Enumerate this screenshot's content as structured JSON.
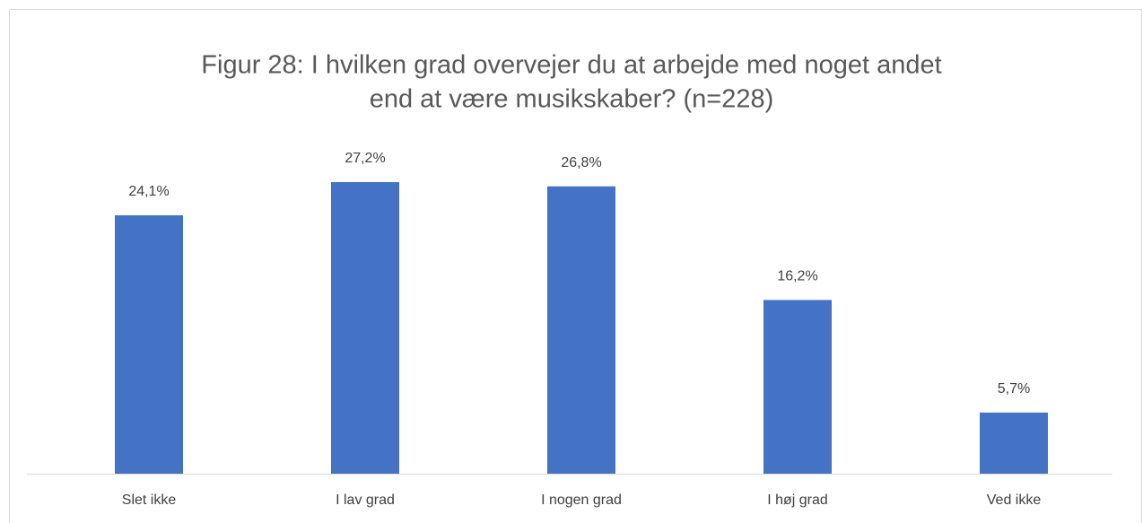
{
  "chart_data": {
    "type": "bar",
    "title": [
      "Figur 28: I hvilken grad overvejer du at arbejde med noget andet",
      "end at være musikskaber? (n=228)"
    ],
    "categories": [
      "Slet ikke",
      "I lav grad",
      "I nogen grad",
      "I høj grad",
      "Ved ikke"
    ],
    "values": [
      24.1,
      27.2,
      26.8,
      16.2,
      5.7
    ],
    "value_labels": [
      "24,1%",
      "27,2%",
      "26,8%",
      "16,2%",
      "5,7%"
    ],
    "color": "#4472c4"
  }
}
